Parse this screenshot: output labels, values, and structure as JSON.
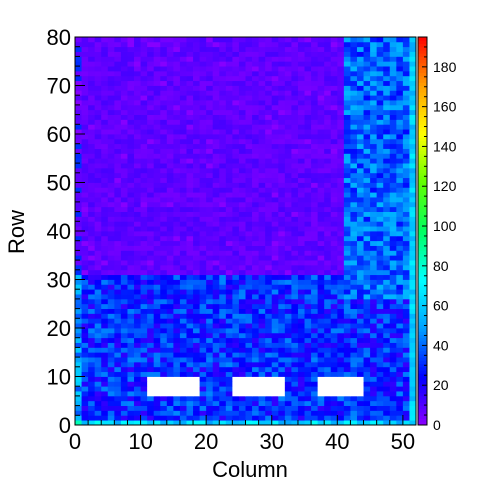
{
  "chart_data": {
    "type": "heatmap",
    "title": "",
    "xlabel": "Column",
    "ylabel": "Row",
    "xlim": [
      0,
      52
    ],
    "ylim": [
      0,
      80
    ],
    "x_ticks": [
      0,
      10,
      20,
      30,
      40,
      50
    ],
    "y_ticks": [
      0,
      10,
      20,
      30,
      40,
      50,
      60,
      70,
      80
    ],
    "colorbar": {
      "range": [
        0,
        195
      ],
      "ticks": [
        0,
        20,
        40,
        60,
        80,
        100,
        120,
        140,
        160,
        180
      ],
      "palette": [
        "#ffffff",
        "#8c00ff",
        "#0000ff",
        "#00a0ff",
        "#00ffff",
        "#00ff60",
        "#60ff00",
        "#ffff00",
        "#ffa000",
        "#ff0000"
      ]
    },
    "grid": false,
    "cells": {
      "columns": 52,
      "rows": 80,
      "description_of_regions": [
        {
          "rows": [
            0,
            1
          ],
          "cols": [
            0,
            52
          ],
          "typical_value": 60
        },
        {
          "rows": [
            1,
            31
          ],
          "cols": [
            0,
            52
          ],
          "typical_value": 30
        },
        {
          "rows": [
            31,
            80
          ],
          "cols": [
            0,
            41
          ],
          "typical_value": 8
        },
        {
          "rows": [
            26,
            80
          ],
          "cols": [
            41,
            52
          ],
          "typical_value": 40
        },
        {
          "rows": [
            6,
            10
          ],
          "cols": [
            11,
            19
          ],
          "typical_value": 0
        },
        {
          "rows": [
            6,
            10
          ],
          "cols": [
            24,
            32
          ],
          "typical_value": 0
        },
        {
          "rows": [
            6,
            10
          ],
          "cols": [
            37,
            44
          ],
          "typical_value": 0
        }
      ]
    }
  }
}
